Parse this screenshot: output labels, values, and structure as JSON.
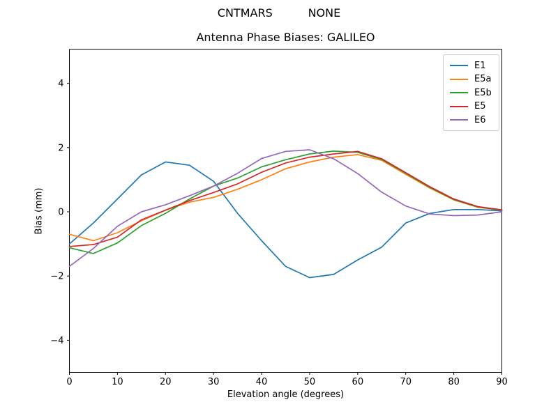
{
  "header": {
    "suptitle": "CNTMARS          NONE",
    "title": "Antenna Phase Biases: GALILEO"
  },
  "axes": {
    "xlabel": "Elevation angle (degrees)",
    "ylabel": "Bias (mm)"
  },
  "legend": {
    "position": "upper right",
    "entries": [
      "E1",
      "E5a",
      "E5b",
      "E5",
      "E6"
    ]
  },
  "chart_data": {
    "type": "line",
    "suptitle": "CNTMARS          NONE",
    "title": "Antenna Phase Biases: GALILEO",
    "xlabel": "Elevation angle (degrees)",
    "ylabel": "Bias (mm)",
    "xlim": [
      0,
      90
    ],
    "ylim": [
      -5,
      5
    ],
    "xticks": [
      0,
      10,
      20,
      30,
      40,
      50,
      60,
      70,
      80,
      90
    ],
    "yticks": [
      -4,
      -2,
      0,
      2,
      4
    ],
    "grid": false,
    "legend_position": "upper right",
    "x": [
      0,
      5,
      10,
      15,
      20,
      25,
      30,
      35,
      40,
      45,
      50,
      55,
      60,
      65,
      70,
      75,
      80,
      85,
      90
    ],
    "series": [
      {
        "name": "E1",
        "color": "#1f77b4",
        "values": [
          -1.0,
          -0.35,
          0.4,
          1.15,
          1.55,
          1.45,
          0.95,
          -0.05,
          -0.9,
          -1.7,
          -2.05,
          -1.95,
          -1.5,
          -1.1,
          -0.35,
          -0.05,
          0.07,
          0.07,
          0.03
        ]
      },
      {
        "name": "E5a",
        "color": "#ff7f0e",
        "values": [
          -0.7,
          -0.9,
          -0.65,
          -0.28,
          0.05,
          0.3,
          0.45,
          0.7,
          1.0,
          1.34,
          1.55,
          1.7,
          1.78,
          1.6,
          1.17,
          0.74,
          0.37,
          0.14,
          0.05
        ]
      },
      {
        "name": "E5b",
        "color": "#2ca02c",
        "values": [
          -1.12,
          -1.3,
          -0.97,
          -0.43,
          -0.05,
          0.4,
          0.8,
          1.05,
          1.4,
          1.62,
          1.8,
          1.89,
          1.85,
          1.63,
          1.2,
          0.76,
          0.38,
          0.15,
          0.05
        ]
      },
      {
        "name": "E5",
        "color": "#d62728",
        "values": [
          -1.08,
          -1.02,
          -0.79,
          -0.25,
          0.05,
          0.35,
          0.6,
          0.87,
          1.23,
          1.52,
          1.7,
          1.8,
          1.88,
          1.65,
          1.22,
          0.78,
          0.4,
          0.16,
          0.06
        ]
      },
      {
        "name": "E6",
        "color": "#9467bd",
        "values": [
          -1.7,
          -1.14,
          -0.45,
          0.0,
          0.22,
          0.5,
          0.8,
          1.2,
          1.66,
          1.88,
          1.93,
          1.65,
          1.19,
          0.61,
          0.18,
          -0.07,
          -0.12,
          -0.1,
          0.0
        ]
      }
    ]
  }
}
